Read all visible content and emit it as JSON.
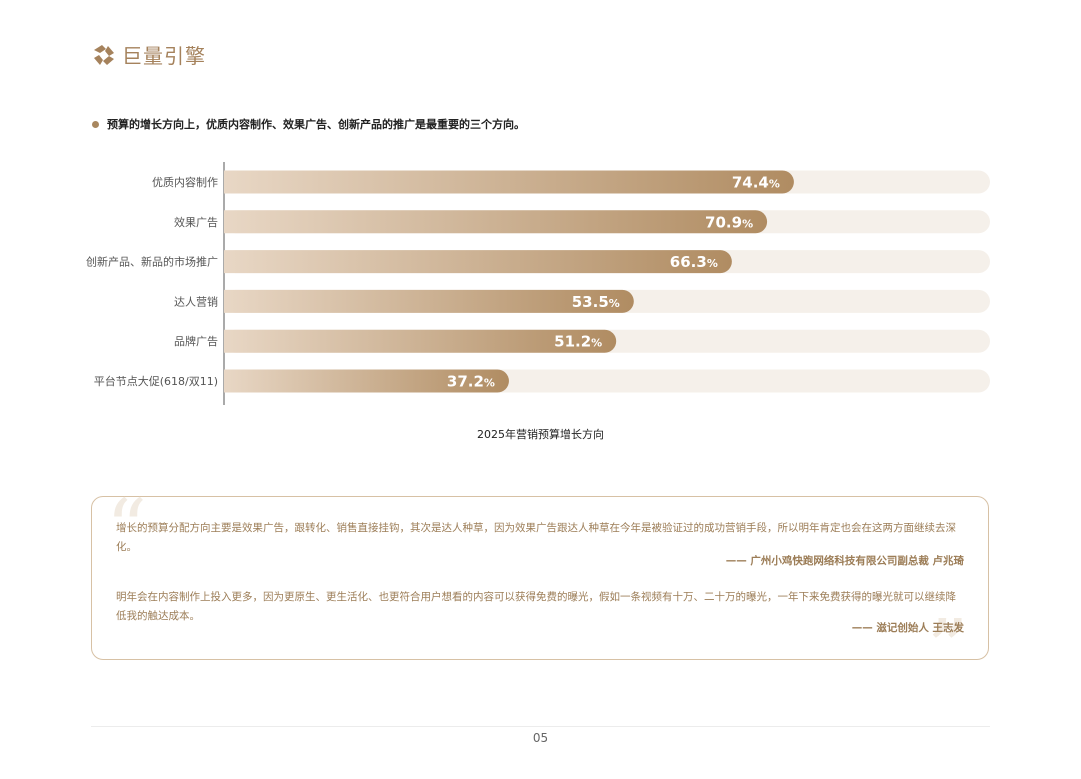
{
  "brand": {
    "name": "巨量引擎",
    "color": "#a5825c"
  },
  "note": "预算的增长方向上，优质内容制作、效果广告、创新产品的推广是最重要的三个方向。",
  "chart_data": {
    "type": "bar",
    "orientation": "horizontal",
    "title": "2025年营销预算增长方向",
    "categories": [
      "优质内容制作",
      "效果广告",
      "创新产品、新品的市场推广",
      "达人营销",
      "品牌广告",
      "平台节点大促(618/双11)"
    ],
    "values": [
      74.4,
      70.9,
      66.3,
      53.5,
      51.2,
      37.2
    ],
    "unit": "%",
    "xlim": [
      0,
      100
    ],
    "grid": false,
    "colors": {
      "bar_start": "#e8d7c5",
      "bar_end": "#b08c62",
      "track": "#f5f0ea"
    }
  },
  "quotes": [
    {
      "text": "增长的预算分配方向主要是效果广告，跟转化、销售直接挂钩，其次是达人种草，因为效果广告跟达人种草在今年是被验证过的成功营销手段，所以明年肯定也会在这两方面继续去深化。",
      "author": "—— 广州小鸡快跑网络科技有限公司副总裁 卢兆琦"
    },
    {
      "text": "明年会在内容制作上投入更多，因为更原生、更生活化、也更符合用户想看的内容可以获得免费的曝光，假如一条视频有十万、二十万的曝光，一年下来免费获得的曝光就可以继续降低我的触达成本。",
      "author": "—— 滋记创始人 王志发"
    }
  ],
  "page_number": "05"
}
